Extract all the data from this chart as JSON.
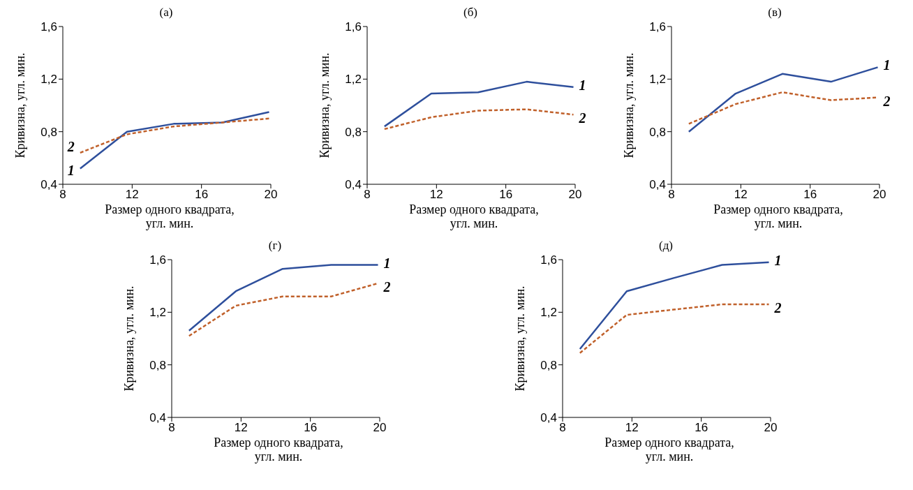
{
  "chart_data": [
    {
      "type": "line",
      "title": "(а)",
      "xlabel": "Размер одного квадрата, угл. мин.",
      "ylabel": "Кривизна, угл. мин.",
      "xlim": [
        8,
        20
      ],
      "xticks": [
        8,
        12,
        16,
        20
      ],
      "ylim": [
        0.4,
        1.6
      ],
      "yticks": [
        {
          "value": 0.4,
          "label": "0,4"
        },
        {
          "value": 0.8,
          "label": "0,8"
        },
        {
          "value": 1.2,
          "label": "1,2"
        },
        {
          "value": 1.6,
          "label": "1,6"
        }
      ],
      "x": [
        9,
        11.7,
        14.4,
        17.2,
        19.9
      ],
      "series": [
        {
          "name": "1",
          "color": "#2e4f9c",
          "line_style": "solid",
          "values": [
            0.52,
            0.8,
            0.86,
            0.87,
            0.95
          ]
        },
        {
          "name": "2",
          "color": "#c0602a",
          "line_style": "dashed",
          "values": [
            0.64,
            0.78,
            0.84,
            0.87,
            0.9
          ]
        }
      ]
    },
    {
      "type": "line",
      "title": "(б)",
      "xlabel": "Размер одного квадрата, угл. мин.",
      "ylabel": "Кривизна, угл. мин.",
      "xlim": [
        8,
        20
      ],
      "xticks": [
        8,
        12,
        16,
        20
      ],
      "ylim": [
        0.4,
        1.6
      ],
      "yticks": [
        {
          "value": 0.4,
          "label": "0,4"
        },
        {
          "value": 0.8,
          "label": "0,8"
        },
        {
          "value": 1.2,
          "label": "1,2"
        },
        {
          "value": 1.6,
          "label": "1,6"
        }
      ],
      "x": [
        9,
        11.7,
        14.4,
        17.2,
        19.9
      ],
      "series": [
        {
          "name": "1",
          "color": "#2e4f9c",
          "line_style": "solid",
          "values": [
            0.84,
            1.09,
            1.1,
            1.18,
            1.14
          ]
        },
        {
          "name": "2",
          "color": "#c0602a",
          "line_style": "dashed",
          "values": [
            0.82,
            0.91,
            0.96,
            0.97,
            0.93
          ]
        }
      ]
    },
    {
      "type": "line",
      "title": "(в)",
      "xlabel": "Размер одного квадрата, угл. мин.",
      "ylabel": "Кривизна, угл. мин.",
      "xlim": [
        8,
        20
      ],
      "xticks": [
        8,
        12,
        16,
        20
      ],
      "ylim": [
        0.4,
        1.6
      ],
      "yticks": [
        {
          "value": 0.4,
          "label": "0,4"
        },
        {
          "value": 0.8,
          "label": "0,8"
        },
        {
          "value": 1.2,
          "label": "1,2"
        },
        {
          "value": 1.6,
          "label": "1,6"
        }
      ],
      "x": [
        9,
        11.7,
        14.4,
        17.2,
        19.9
      ],
      "series": [
        {
          "name": "1",
          "color": "#2e4f9c",
          "line_style": "solid",
          "values": [
            0.8,
            1.09,
            1.24,
            1.18,
            1.29
          ]
        },
        {
          "name": "2",
          "color": "#c0602a",
          "line_style": "dashed",
          "values": [
            0.86,
            1.01,
            1.1,
            1.04,
            1.06
          ]
        }
      ]
    },
    {
      "type": "line",
      "title": "(г)",
      "xlabel": "Размер одного квадрата, угл. мин.",
      "ylabel": "Кривизна, угл. мин.",
      "xlim": [
        8,
        20
      ],
      "xticks": [
        8,
        12,
        16,
        20
      ],
      "ylim": [
        0.4,
        1.6
      ],
      "yticks": [
        {
          "value": 0.4,
          "label": "0,4"
        },
        {
          "value": 0.8,
          "label": "0,8"
        },
        {
          "value": 1.2,
          "label": "1,2"
        },
        {
          "value": 1.6,
          "label": "1,6"
        }
      ],
      "x": [
        9,
        11.7,
        14.4,
        17.2,
        19.9
      ],
      "series": [
        {
          "name": "1",
          "color": "#2e4f9c",
          "line_style": "solid",
          "values": [
            1.06,
            1.36,
            1.53,
            1.56,
            1.56
          ]
        },
        {
          "name": "2",
          "color": "#c0602a",
          "line_style": "dashed",
          "values": [
            1.02,
            1.25,
            1.32,
            1.32,
            1.42
          ]
        }
      ]
    },
    {
      "type": "line",
      "title": "(д)",
      "xlabel": "Размер одного квадрата, угл. мин.",
      "ylabel": "Кривизна, угл. мин.",
      "xlim": [
        8,
        20
      ],
      "xticks": [
        8,
        12,
        16,
        20
      ],
      "ylim": [
        0.4,
        1.6
      ],
      "yticks": [
        {
          "value": 0.4,
          "label": "0,4"
        },
        {
          "value": 0.8,
          "label": "0,8"
        },
        {
          "value": 1.2,
          "label": "1,2"
        },
        {
          "value": 1.6,
          "label": "1,6"
        }
      ],
      "x": [
        9,
        11.7,
        14.4,
        17.2,
        19.9
      ],
      "series": [
        {
          "name": "1",
          "color": "#2e4f9c",
          "line_style": "solid",
          "values": [
            0.92,
            1.36,
            1.46,
            1.56,
            1.58
          ]
        },
        {
          "name": "2",
          "color": "#c0602a",
          "line_style": "dashed",
          "values": [
            0.89,
            1.18,
            1.22,
            1.26,
            1.26
          ]
        }
      ]
    }
  ]
}
